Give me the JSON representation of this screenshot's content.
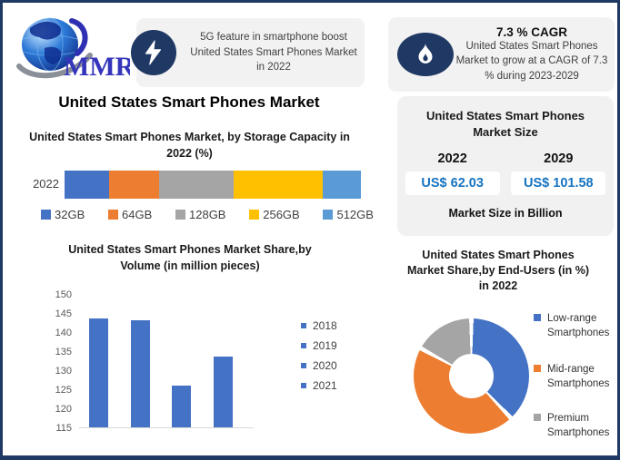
{
  "brand": {
    "logo_text": "MMR"
  },
  "cards": {
    "insight": {
      "icon": "lightning-icon",
      "text": "5G feature in smartphone boost United States Smart Phones Market in 2022"
    },
    "cagr": {
      "icon": "flame-icon",
      "headline": "7.3 % CAGR",
      "body": "United States Smart Phones Market to grow at a CAGR of 7.3 % during 2023-2029"
    }
  },
  "page_title": "United States Smart Phones Market",
  "market_size_panel": {
    "title": "United States Smart Phones Market Size",
    "columns": [
      {
        "year": "2022",
        "value": "US$ 62.03"
      },
      {
        "year": "2029",
        "value": "US$ 101.58"
      }
    ],
    "footnote": "Market Size in Billion",
    "value_color": "#1674C1"
  },
  "chart_data": [
    {
      "id": "storage",
      "type": "bar",
      "subtype": "horizontal-stacked",
      "title": "United States Smart Phones Market, by Storage Capacity in 2022 (%)",
      "category": "2022",
      "series": [
        {
          "name": "32GB",
          "value": 15,
          "color": "#4472C4"
        },
        {
          "name": "64GB",
          "value": 17,
          "color": "#ED7D31"
        },
        {
          "name": "128GB",
          "value": 25,
          "color": "#A5A5A5"
        },
        {
          "name": "256GB",
          "value": 30,
          "color": "#FFC000"
        },
        {
          "name": "512GB",
          "value": 13,
          "color": "#5B9BD5"
        }
      ],
      "legend_position": "bottom",
      "grid": false
    },
    {
      "id": "volume",
      "type": "bar",
      "title": "United States Smart Phones Market Share,by Volume (in million pieces)",
      "categories": [
        "2018",
        "2019",
        "2020",
        "2021"
      ],
      "values": [
        143.5,
        143,
        126,
        133.5
      ],
      "bar_color": "#4472C4",
      "ylim": [
        115,
        150
      ],
      "yticks": [
        150,
        145,
        140,
        135,
        130,
        125,
        120,
        115
      ],
      "legend_position": "right",
      "grid": false
    },
    {
      "id": "end_users",
      "type": "pie",
      "subtype": "donut",
      "title": "United States Smart Phones Market Share,by End-Users (in %) in 2022",
      "slices": [
        {
          "label": "Low-range Smartphones",
          "value": 38,
          "color": "#4472C4"
        },
        {
          "label": "Mid-range Smartphones",
          "value": 45,
          "color": "#ED7D31"
        },
        {
          "label": "Premium Smartphones",
          "value": 17,
          "color": "#A5A5A5"
        }
      ],
      "legend_position": "right",
      "start_angle_deg": 0
    }
  ],
  "colors": {
    "frame_border": "#1F3864",
    "card_background": "#F2F2F2",
    "icon_background": "#1F3864",
    "panel_background": "#F1F1F1"
  }
}
